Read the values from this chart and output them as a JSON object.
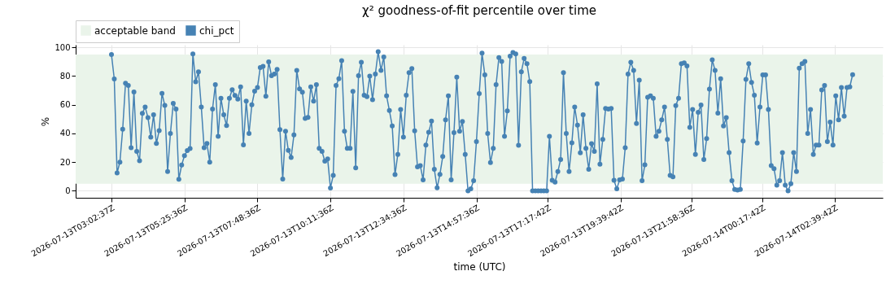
{
  "chart_data": {
    "type": "line",
    "title": "χ² goodness-of-fit percentile over time",
    "xlabel": "time (UTC)",
    "ylabel": "%",
    "x": [
      "2026-07-13T03:02:37",
      "2026-07-13T03:08:07",
      "2026-07-13T03:13:37",
      "2026-07-13T03:19:07",
      "2026-07-13T03:24:37",
      "2026-07-13T03:30:07",
      "2026-07-13T03:35:37",
      "2026-07-13T03:41:07",
      "2026-07-13T03:46:37",
      "2026-07-13T03:52:07",
      "2026-07-13T03:57:37",
      "2026-07-13T04:03:07",
      "2026-07-13T04:08:37",
      "2026-07-13T04:14:07",
      "2026-07-13T04:19:37",
      "2026-07-13T04:25:07",
      "2026-07-13T04:30:37",
      "2026-07-13T04:36:07",
      "2026-07-13T04:41:37",
      "2026-07-13T04:47:07",
      "2026-07-13T04:52:37",
      "2026-07-13T04:58:07",
      "2026-07-13T05:03:37",
      "2026-07-13T05:09:07",
      "2026-07-13T05:14:37",
      "2026-07-13T05:20:07",
      "2026-07-13T05:25:37",
      "2026-07-13T05:31:07",
      "2026-07-13T05:36:37",
      "2026-07-13T05:42:07",
      "2026-07-13T05:47:37",
      "2026-07-13T05:53:07",
      "2026-07-13T05:58:37",
      "2026-07-13T06:04:07",
      "2026-07-13T06:09:37",
      "2026-07-13T06:15:07",
      "2026-07-13T06:20:37",
      "2026-07-13T06:26:07",
      "2026-07-13T06:31:37",
      "2026-07-13T06:37:07",
      "2026-07-13T06:42:37",
      "2026-07-13T06:48:07",
      "2026-07-13T06:53:37",
      "2026-07-13T06:59:07",
      "2026-07-13T07:04:37",
      "2026-07-13T07:10:07",
      "2026-07-13T07:15:37",
      "2026-07-13T07:21:07",
      "2026-07-13T07:26:37",
      "2026-07-13T07:32:07",
      "2026-07-13T07:37:37",
      "2026-07-13T07:43:07",
      "2026-07-13T07:48:37",
      "2026-07-13T07:54:07",
      "2026-07-13T07:59:37",
      "2026-07-13T08:05:07",
      "2026-07-13T08:10:37",
      "2026-07-13T08:16:07",
      "2026-07-13T08:21:37",
      "2026-07-13T08:27:07",
      "2026-07-13T08:32:37",
      "2026-07-13T08:38:07",
      "2026-07-13T08:43:37",
      "2026-07-13T08:49:07",
      "2026-07-13T08:54:37",
      "2026-07-13T09:00:07",
      "2026-07-13T09:05:37",
      "2026-07-13T09:11:07",
      "2026-07-13T09:16:37",
      "2026-07-13T09:22:07",
      "2026-07-13T09:27:37",
      "2026-07-13T09:33:07",
      "2026-07-13T09:38:37",
      "2026-07-13T09:44:07",
      "2026-07-13T09:49:37",
      "2026-07-13T09:55:07",
      "2026-07-13T10:00:37",
      "2026-07-13T10:06:07",
      "2026-07-13T10:11:37",
      "2026-07-13T10:17:07",
      "2026-07-13T10:22:37",
      "2026-07-13T10:28:07",
      "2026-07-13T10:33:37",
      "2026-07-13T10:39:07",
      "2026-07-13T10:44:37",
      "2026-07-13T10:50:07",
      "2026-07-13T10:55:37",
      "2026-07-13T11:01:07",
      "2026-07-13T11:06:37",
      "2026-07-13T11:12:07",
      "2026-07-13T11:17:37",
      "2026-07-13T11:23:07",
      "2026-07-13T11:28:37",
      "2026-07-13T11:34:07",
      "2026-07-13T11:39:37",
      "2026-07-13T11:45:07",
      "2026-07-13T11:50:37",
      "2026-07-13T11:56:07",
      "2026-07-13T12:01:37",
      "2026-07-13T12:07:07",
      "2026-07-13T12:12:37",
      "2026-07-13T12:18:07",
      "2026-07-13T12:23:37",
      "2026-07-13T12:29:07",
      "2026-07-13T12:34:37",
      "2026-07-13T12:40:07",
      "2026-07-13T12:45:37",
      "2026-07-13T12:51:07",
      "2026-07-13T12:56:37",
      "2026-07-13T13:02:07",
      "2026-07-13T13:07:37",
      "2026-07-13T13:13:07",
      "2026-07-13T13:18:37",
      "2026-07-13T13:24:07",
      "2026-07-13T13:29:37",
      "2026-07-13T13:35:07",
      "2026-07-13T13:40:37",
      "2026-07-13T13:46:07",
      "2026-07-13T13:51:37",
      "2026-07-13T13:57:07",
      "2026-07-13T14:02:37",
      "2026-07-13T14:08:07",
      "2026-07-13T14:13:37",
      "2026-07-13T14:19:07",
      "2026-07-13T14:24:37",
      "2026-07-13T14:30:07",
      "2026-07-13T14:35:37",
      "2026-07-13T14:41:07",
      "2026-07-13T14:46:37",
      "2026-07-13T14:52:07",
      "2026-07-13T14:57:37",
      "2026-07-13T15:03:07",
      "2026-07-13T15:08:37",
      "2026-07-13T15:14:07",
      "2026-07-13T15:19:37",
      "2026-07-13T15:25:07",
      "2026-07-13T15:30:37",
      "2026-07-13T15:36:07",
      "2026-07-13T15:41:37",
      "2026-07-13T15:47:07",
      "2026-07-13T15:52:37",
      "2026-07-13T15:58:07",
      "2026-07-13T16:03:37",
      "2026-07-13T16:09:07",
      "2026-07-13T16:14:37",
      "2026-07-13T16:20:07",
      "2026-07-13T16:25:37",
      "2026-07-13T16:31:07",
      "2026-07-13T16:36:37",
      "2026-07-13T16:42:07",
      "2026-07-13T16:47:37",
      "2026-07-13T16:53:07",
      "2026-07-13T16:58:37",
      "2026-07-13T17:04:07",
      "2026-07-13T17:09:37",
      "2026-07-13T17:15:07",
      "2026-07-13T17:20:37",
      "2026-07-13T17:26:07",
      "2026-07-13T17:31:37",
      "2026-07-13T17:37:07",
      "2026-07-13T17:42:37",
      "2026-07-13T17:48:07",
      "2026-07-13T17:53:37",
      "2026-07-13T17:59:07",
      "2026-07-13T18:04:37",
      "2026-07-13T18:10:07",
      "2026-07-13T18:15:37",
      "2026-07-13T18:21:07",
      "2026-07-13T18:26:37",
      "2026-07-13T18:32:07",
      "2026-07-13T18:37:37",
      "2026-07-13T18:43:07",
      "2026-07-13T18:48:37",
      "2026-07-13T18:54:07",
      "2026-07-13T18:59:37",
      "2026-07-13T19:05:07",
      "2026-07-13T19:10:37",
      "2026-07-13T19:16:07",
      "2026-07-13T19:21:37",
      "2026-07-13T19:27:07",
      "2026-07-13T19:32:37",
      "2026-07-13T19:38:07",
      "2026-07-13T19:43:37",
      "2026-07-13T19:49:07",
      "2026-07-13T19:54:37",
      "2026-07-13T20:00:07",
      "2026-07-13T20:05:37",
      "2026-07-13T20:11:07",
      "2026-07-13T20:16:37",
      "2026-07-13T20:22:07",
      "2026-07-13T20:27:37",
      "2026-07-13T20:33:07",
      "2026-07-13T20:38:37",
      "2026-07-13T20:44:07",
      "2026-07-13T20:49:37",
      "2026-07-13T20:55:07",
      "2026-07-13T21:00:37",
      "2026-07-13T21:06:07",
      "2026-07-13T21:11:37",
      "2026-07-13T21:17:07",
      "2026-07-13T21:22:37",
      "2026-07-13T21:28:07",
      "2026-07-13T21:33:37",
      "2026-07-13T21:39:07",
      "2026-07-13T21:44:37",
      "2026-07-13T21:50:07",
      "2026-07-13T21:55:37",
      "2026-07-13T22:01:07",
      "2026-07-13T22:06:37",
      "2026-07-13T22:12:07",
      "2026-07-13T22:17:37",
      "2026-07-13T22:23:07",
      "2026-07-13T22:28:37",
      "2026-07-13T22:34:07",
      "2026-07-13T22:39:37",
      "2026-07-13T22:45:07",
      "2026-07-13T22:50:37",
      "2026-07-13T22:56:07",
      "2026-07-13T23:01:37",
      "2026-07-13T23:07:07",
      "2026-07-13T23:12:37",
      "2026-07-13T23:18:07",
      "2026-07-13T23:23:37",
      "2026-07-13T23:29:07",
      "2026-07-13T23:34:37",
      "2026-07-13T23:40:07",
      "2026-07-13T23:45:37",
      "2026-07-13T23:51:07",
      "2026-07-13T23:56:37",
      "2026-07-14T00:02:07",
      "2026-07-14T00:07:37",
      "2026-07-14T00:13:07",
      "2026-07-14T00:18:37",
      "2026-07-14T00:24:07",
      "2026-07-14T00:29:37",
      "2026-07-14T00:35:07",
      "2026-07-14T00:40:37",
      "2026-07-14T00:46:07",
      "2026-07-14T00:51:37",
      "2026-07-14T00:57:07",
      "2026-07-14T01:02:37",
      "2026-07-14T01:08:07",
      "2026-07-14T01:13:37",
      "2026-07-14T01:19:07",
      "2026-07-14T01:24:37",
      "2026-07-14T01:30:07",
      "2026-07-14T01:35:37",
      "2026-07-14T01:41:07",
      "2026-07-14T01:46:37",
      "2026-07-14T01:52:07",
      "2026-07-14T01:57:37",
      "2026-07-14T02:03:07",
      "2026-07-14T02:08:37",
      "2026-07-14T02:14:07",
      "2026-07-14T02:19:37",
      "2026-07-14T02:25:07",
      "2026-07-14T02:30:37",
      "2026-07-14T02:36:07",
      "2026-07-14T02:41:37",
      "2026-07-14T02:47:07",
      "2026-07-14T02:52:37",
      "2026-07-14T02:58:07",
      "2026-07-14T03:03:37",
      "2026-07-14T03:09:07",
      "2026-07-14T03:14:37"
    ],
    "series": [
      {
        "name": "chi_pct",
        "color": "#4682b4",
        "values": [
          95,
          78,
          12.5,
          20,
          43,
          75,
          73.5,
          30,
          69,
          27.5,
          21,
          54,
          58.5,
          51,
          37.5,
          53,
          33,
          42,
          68,
          59.5,
          13.5,
          40,
          61,
          57,
          8,
          18,
          24.5,
          28,
          29.5,
          95.5,
          76,
          83,
          58.5,
          30,
          33,
          20,
          57,
          74,
          38,
          64.5,
          53,
          45.5,
          64.5,
          70.5,
          66.5,
          64,
          72.5,
          32,
          62.5,
          40,
          60,
          69.5,
          72,
          86,
          86.8,
          66,
          90,
          80.3,
          81.4,
          84.7,
          42.7,
          8.2,
          41.6,
          28.2,
          23.3,
          39,
          84,
          71,
          68.8,
          50.5,
          51.2,
          72.5,
          62.5,
          74,
          29.6,
          27.5,
          20.7,
          22.3,
          2,
          10.8,
          73.5,
          78.2,
          90.8,
          41.6,
          29.6,
          29.6,
          69.3,
          16,
          80.3,
          89.7,
          66.7,
          65.7,
          80,
          63.6,
          81.4,
          97,
          84,
          93.4,
          66.2,
          56,
          45.3,
          11.3,
          25.4,
          56.8,
          37.5,
          66.7,
          82.4,
          85.2,
          41.8,
          16.7,
          17.6,
          7.7,
          31.9,
          40.8,
          48.6,
          15,
          2.1,
          11.5,
          23.9,
          49.5,
          66.2,
          7.7,
          40.6,
          79.3,
          41.6,
          48.4,
          25.4,
          0,
          1.4,
          7.1,
          34.3,
          67.8,
          96,
          80.8,
          40,
          19.7,
          29.6,
          74,
          92.9,
          90.2,
          38,
          55.7,
          93.9,
          96.5,
          95.5,
          31.7,
          83,
          92.3,
          88.7,
          76.1,
          0,
          0,
          0,
          0,
          0,
          0,
          38,
          7.3,
          6.1,
          13.4,
          21.8,
          82.4,
          40,
          13.4,
          33.4,
          58.5,
          45.8,
          26.5,
          53.1,
          29.6,
          15,
          32.9,
          27.5,
          74.6,
          18.6,
          35.9,
          57.5,
          57,
          57.5,
          7.3,
          1.4,
          7.7,
          8.2,
          30.1,
          81.4,
          89.7,
          84,
          46.9,
          77.2,
          7.1,
          18.1,
          65.2,
          66.2,
          64.6,
          38,
          41.6,
          49.5,
          58.4,
          35.9,
          10.8,
          9.8,
          59.4,
          64.6,
          88.7,
          89.2,
          87.1,
          44.3,
          56.8,
          25.4,
          54.7,
          59.9,
          21.8,
          36.4,
          70.9,
          91.3,
          84,
          54.2,
          78.2,
          45.3,
          51,
          26.7,
          7.1,
          0.9,
          0.5,
          0.9,
          34.8,
          77.7,
          88.7,
          75.6,
          66.7,
          33.3,
          58.4,
          80.8,
          80.8,
          56.8,
          17.6,
          15.5,
          4,
          7.1,
          26.7,
          4,
          0,
          5,
          26.7,
          13.4,
          85.5,
          88.7,
          90.2,
          40,
          56.8,
          25.4,
          31.9,
          31.9,
          70.4,
          73.5,
          34.3,
          47.9,
          31.9,
          66.2,
          49.5,
          72,
          52,
          72,
          72.5,
          81
        ]
      }
    ],
    "xlim": [
      "2026-07-13T01:52:29",
      "2026-07-14T04:13:44"
    ],
    "xticks": [
      {
        "value": "2026-07-13T03:02:37",
        "label": "2026-07-13T03:02:37Z"
      },
      {
        "value": "2026-07-13T05:25:36",
        "label": "2026-07-13T05:25:36Z"
      },
      {
        "value": "2026-07-13T07:48:36",
        "label": "2026-07-13T07:48:36Z"
      },
      {
        "value": "2026-07-13T10:11:36",
        "label": "2026-07-13T10:11:36Z"
      },
      {
        "value": "2026-07-13T12:34:36",
        "label": "2026-07-13T12:34:36Z"
      },
      {
        "value": "2026-07-13T14:57:36",
        "label": "2026-07-13T14:57:36Z"
      },
      {
        "value": "2026-07-13T17:17:42",
        "label": "2026-07-13T17:17:42Z"
      },
      {
        "value": "2026-07-13T19:39:42",
        "label": "2026-07-13T19:39:42Z"
      },
      {
        "value": "2026-07-13T21:58:36",
        "label": "2026-07-13T21:58:36Z"
      },
      {
        "value": "2026-07-14T00:17:42",
        "label": "2026-07-14T00:17:42Z"
      },
      {
        "value": "2026-07-14T02:39:42",
        "label": "2026-07-14T02:39:42Z"
      }
    ],
    "ylim": [
      -4.85,
      101.85
    ],
    "yticks": [
      0,
      20,
      40,
      60,
      80,
      100
    ],
    "bands": [
      {
        "axis": "y",
        "from": 5,
        "to": 95,
        "label": "acceptable band",
        "color": "#eaf4ea"
      }
    ],
    "grid": true,
    "legend": "top left",
    "marker": "circle",
    "line_style": "solid"
  }
}
